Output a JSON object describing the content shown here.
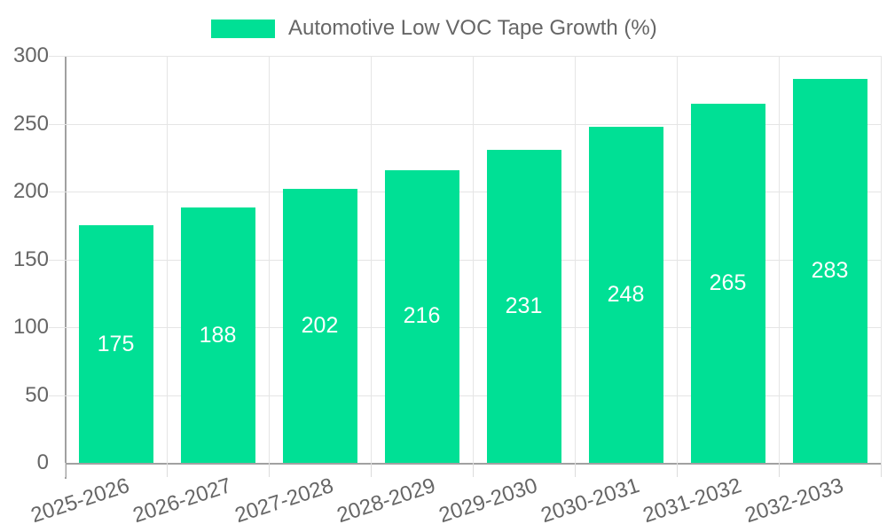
{
  "chart_data": {
    "type": "bar",
    "title": "Automotive Low VOC Tape Growth (%)",
    "legend": {
      "position": "top",
      "items": [
        {
          "label": "Automotive Low VOC Tape Growth (%)",
          "color": "#00e095"
        }
      ]
    },
    "categories": [
      "2025-2026",
      "2026-2027",
      "2027-2028",
      "2028-2029",
      "2029-2030",
      "2030-2031",
      "2031-2032",
      "2032-2033"
    ],
    "values": [
      175,
      188,
      202,
      216,
      231,
      248,
      265,
      283
    ],
    "data_labels_shown": true,
    "xlabel": "",
    "ylabel": "",
    "ylim": [
      0,
      300
    ],
    "yticks": [
      0,
      50,
      100,
      150,
      200,
      250,
      300
    ],
    "grid": true,
    "colors": {
      "bar": "#00e095",
      "data_label": "#ffffff",
      "axis_text": "#666666",
      "grid_line": "#e5e5e5",
      "tick_line": "#dcdcdc",
      "axis_line": "#a1a1a1",
      "background": "#ffffff"
    }
  }
}
